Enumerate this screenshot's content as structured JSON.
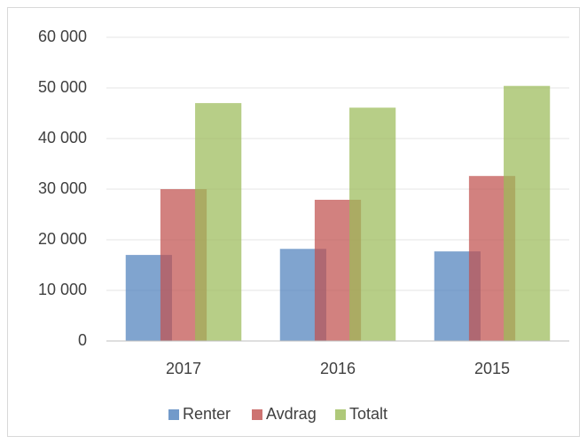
{
  "chart_data": {
    "type": "bar",
    "categories": [
      "2017",
      "2016",
      "2015"
    ],
    "series": [
      {
        "name": "Renter",
        "color": "#4f81bd",
        "values": [
          17000,
          18200,
          17700
        ]
      },
      {
        "name": "Avdrag",
        "color": "#c0504d",
        "values": [
          30000,
          27900,
          32600
        ]
      },
      {
        "name": "Totalt",
        "color": "#9bbb59",
        "values": [
          47000,
          46100,
          50400
        ]
      }
    ],
    "ylim": [
      0,
      60000
    ],
    "yticks": [
      0,
      {
        "value": 10000,
        "label": "10 000"
      },
      {
        "value": 20000,
        "label": "20 000"
      },
      {
        "value": 30000,
        "label": "30 000"
      },
      {
        "value": 40000,
        "label": "40 000"
      },
      {
        "value": 50000,
        "label": "50 000"
      },
      {
        "value": 60000,
        "label": "60 000"
      }
    ],
    "grid": true,
    "legend": "bottom"
  }
}
